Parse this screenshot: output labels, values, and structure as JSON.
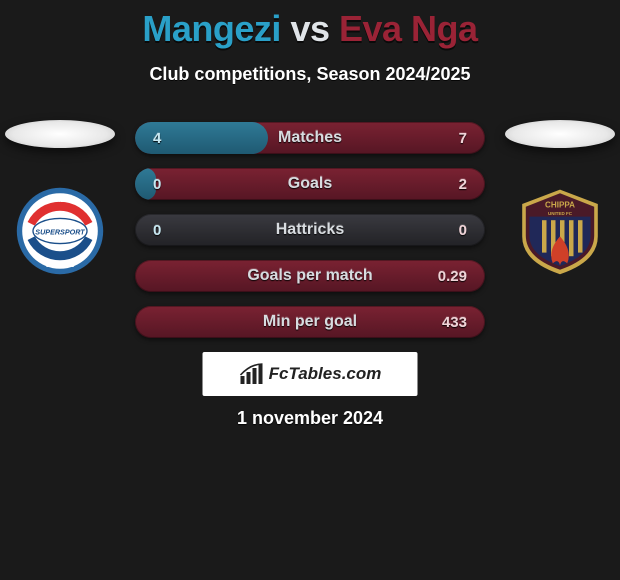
{
  "title": {
    "player1": "Mangezi",
    "vs": "vs",
    "player2": "Eva Nga",
    "player1_color": "#2aa0c8",
    "vs_color": "#e0e4e8",
    "player2_color": "#9a2336"
  },
  "subtitle": {
    "text": "Club competitions, Season 2024/2025",
    "color": "#ffffff"
  },
  "stats": {
    "label_color": "#d8dce0",
    "val_left_color": "#c8e8f2",
    "val_right_color": "#f0d4d8",
    "rows": [
      {
        "label": "Matches",
        "left": "4",
        "right": "7",
        "left_ratio": 0.38
      },
      {
        "label": "Goals",
        "left": "0",
        "right": "2",
        "left_ratio": 0.06
      },
      {
        "label": "Hattricks",
        "left": "0",
        "right": "0",
        "left_ratio": 0.5
      },
      {
        "label": "Goals per match",
        "left": "",
        "right": "0.29",
        "left_ratio": 0.0
      },
      {
        "label": "Min per goal",
        "left": "",
        "right": "433",
        "left_ratio": 0.0
      }
    ],
    "bg_left": "linear-gradient(180deg,#2f7a96 0%,#1f5a72 100%)",
    "bg_right": "linear-gradient(180deg,#7a2232 0%,#561624 100%)",
    "bg_neutral": "linear-gradient(180deg,#3a3a40 0%,#222226 100%)"
  },
  "brand": {
    "text": "FcTables.com"
  },
  "date": {
    "text": "1 november 2024"
  },
  "clubs": {
    "left": {
      "name": "SuperSport United FC",
      "ring_outer": "#2a6aa6",
      "ring_inner": "#ffffff",
      "arc_top": "#e03030",
      "arc_bottom": "#1b4f8a",
      "wordmark": "SUPERSPORT"
    },
    "right": {
      "name": "Chippa United FC",
      "shield_top": "#4a1a28",
      "shield_mid": "#202858",
      "shield_outline": "#caa84a",
      "flame": "#d04028"
    }
  }
}
